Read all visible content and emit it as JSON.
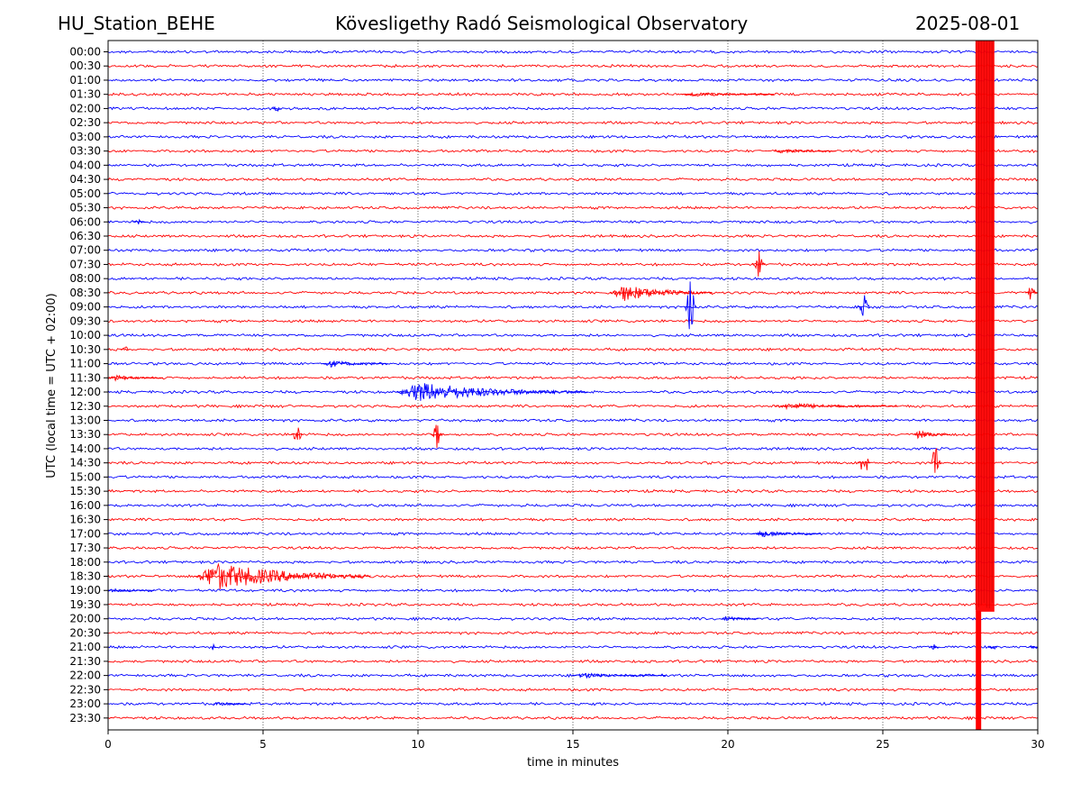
{
  "header": {
    "station": "HU_Station_BEHE",
    "title": "Kövesligethy Radó Seismological Observatory",
    "date": "2025-08-01"
  },
  "chart_data": {
    "type": "line",
    "plot_kind": "helicorder",
    "xlabel": "time in minutes",
    "ylabel": "UTC (local time = UTC + 02:00)",
    "xlim": [
      0,
      30
    ],
    "x_ticks": [
      0,
      5,
      10,
      15,
      20,
      25,
      30
    ],
    "grid": "vertical dotted lines at each x tick",
    "trace_colors": [
      "#0000ff",
      "#ff0000"
    ],
    "rows": [
      "00:00",
      "00:30",
      "01:00",
      "01:30",
      "02:00",
      "02:30",
      "03:00",
      "03:30",
      "04:00",
      "04:30",
      "05:00",
      "05:30",
      "06:00",
      "06:30",
      "07:00",
      "07:30",
      "08:00",
      "08:30",
      "09:00",
      "09:30",
      "10:00",
      "10:30",
      "11:00",
      "11:30",
      "12:00",
      "12:30",
      "13:00",
      "13:30",
      "14:00",
      "14:30",
      "15:00",
      "15:30",
      "16:00",
      "16:30",
      "17:00",
      "17:30",
      "18:00",
      "18:30",
      "19:00",
      "19:30",
      "20:00",
      "20:30",
      "21:00",
      "21:30",
      "22:00",
      "22:30",
      "23:00",
      "23:30"
    ],
    "events": [
      {
        "row": "01:30",
        "start": 18.5,
        "end": 21.5,
        "amp": 0.35,
        "kind": "tele"
      },
      {
        "row": "02:00",
        "start": 5.3,
        "end": 5.6,
        "amp": 0.5,
        "kind": "spike"
      },
      {
        "row": "03:30",
        "start": 21.5,
        "end": 23.5,
        "amp": 0.3,
        "kind": "tele"
      },
      {
        "row": "06:00",
        "start": 0.8,
        "end": 1.2,
        "amp": 0.35,
        "kind": "spike"
      },
      {
        "row": "07:30",
        "start": 20.8,
        "end": 21.2,
        "amp": 2.0,
        "kind": "spike"
      },
      {
        "row": "08:30",
        "start": 16.2,
        "end": 19.5,
        "amp": 1.2,
        "kind": "tele"
      },
      {
        "row": "08:30",
        "start": 29.6,
        "end": 30.0,
        "amp": 1.2,
        "kind": "spike"
      },
      {
        "row": "09:00",
        "start": 18.6,
        "end": 19.0,
        "amp": 4.5,
        "kind": "spike"
      },
      {
        "row": "09:00",
        "start": 24.2,
        "end": 24.6,
        "amp": 2.5,
        "kind": "spike"
      },
      {
        "row": "10:30",
        "start": 0.4,
        "end": 0.7,
        "amp": 0.5,
        "kind": "spike"
      },
      {
        "row": "11:00",
        "start": 6.9,
        "end": 9.0,
        "amp": 0.5,
        "kind": "tele"
      },
      {
        "row": "11:30",
        "start": 0.0,
        "end": 1.8,
        "amp": 0.4,
        "kind": "tele"
      },
      {
        "row": "12:00",
        "start": 9.3,
        "end": 15.5,
        "amp": 1.4,
        "kind": "tele"
      },
      {
        "row": "12:30",
        "start": 21.5,
        "end": 25.5,
        "amp": 0.45,
        "kind": "tele"
      },
      {
        "row": "13:30",
        "start": 5.9,
        "end": 6.3,
        "amp": 1.6,
        "kind": "spike"
      },
      {
        "row": "13:30",
        "start": 10.4,
        "end": 10.8,
        "amp": 2.3,
        "kind": "spike"
      },
      {
        "row": "13:30",
        "start": 26.0,
        "end": 27.2,
        "amp": 0.6,
        "kind": "tele"
      },
      {
        "row": "14:30",
        "start": 24.2,
        "end": 24.6,
        "amp": 2.3,
        "kind": "spike"
      },
      {
        "row": "14:30",
        "start": 26.5,
        "end": 26.9,
        "amp": 2.5,
        "kind": "spike"
      },
      {
        "row": "17:00",
        "start": 20.8,
        "end": 23.0,
        "amp": 0.5,
        "kind": "tele"
      },
      {
        "row": "18:30",
        "start": 2.8,
        "end": 8.5,
        "amp": 2.0,
        "kind": "tele"
      },
      {
        "row": "19:00",
        "start": 0.0,
        "end": 1.5,
        "amp": 0.3,
        "kind": "tele"
      },
      {
        "row": "20:00",
        "start": 19.8,
        "end": 21.0,
        "amp": 0.4,
        "kind": "tele"
      },
      {
        "row": "21:00",
        "start": 3.3,
        "end": 3.5,
        "amp": 0.5,
        "kind": "spike"
      },
      {
        "row": "21:00",
        "start": 26.5,
        "end": 26.8,
        "amp": 0.6,
        "kind": "spike"
      },
      {
        "row": "21:00",
        "start": 28.4,
        "end": 28.7,
        "amp": 0.5,
        "kind": "spike"
      },
      {
        "row": "21:00",
        "start": 29.7,
        "end": 30.0,
        "amp": 0.5,
        "kind": "spike"
      },
      {
        "row": "22:00",
        "start": 15.0,
        "end": 18.0,
        "amp": 0.4,
        "kind": "tele"
      },
      {
        "row": "23:00",
        "start": 3.4,
        "end": 4.5,
        "amp": 0.3,
        "kind": "tele"
      }
    ],
    "large_event": {
      "start_minute": 28.0,
      "end_minute": 28.6,
      "from_row": "00:00",
      "to_row": "19:30",
      "color": "#ff0000"
    }
  }
}
